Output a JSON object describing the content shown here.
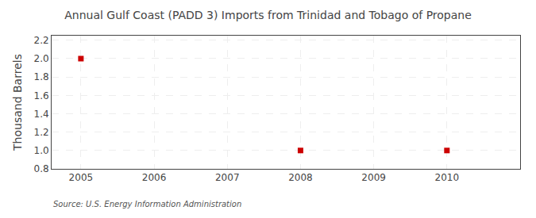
{
  "chart_data": {
    "type": "scatter",
    "title": "Annual Gulf Coast (PADD 3) Imports from Trinidad and Tobago of Propane",
    "ylabel": "Thousand Barrels",
    "annotations": [
      "Source: U.S. Energy Information Administration"
    ],
    "x": [
      2005,
      2008,
      2010
    ],
    "values": [
      2.0,
      1.0,
      1.0
    ],
    "color": "#cc0000",
    "marker": "square",
    "xlim": [
      2004.6,
      2011.0
    ],
    "ylim": [
      0.8,
      2.25
    ],
    "xticks": [
      2005,
      2006,
      2007,
      2008,
      2009,
      2010
    ],
    "yticks": [
      0.8,
      {
        "value": 1.0,
        "label": "1.0"
      },
      1.2,
      1.4,
      1.6,
      1.8,
      {
        "value": 2.0,
        "label": "2.0"
      },
      2.2
    ],
    "grid": true
  }
}
